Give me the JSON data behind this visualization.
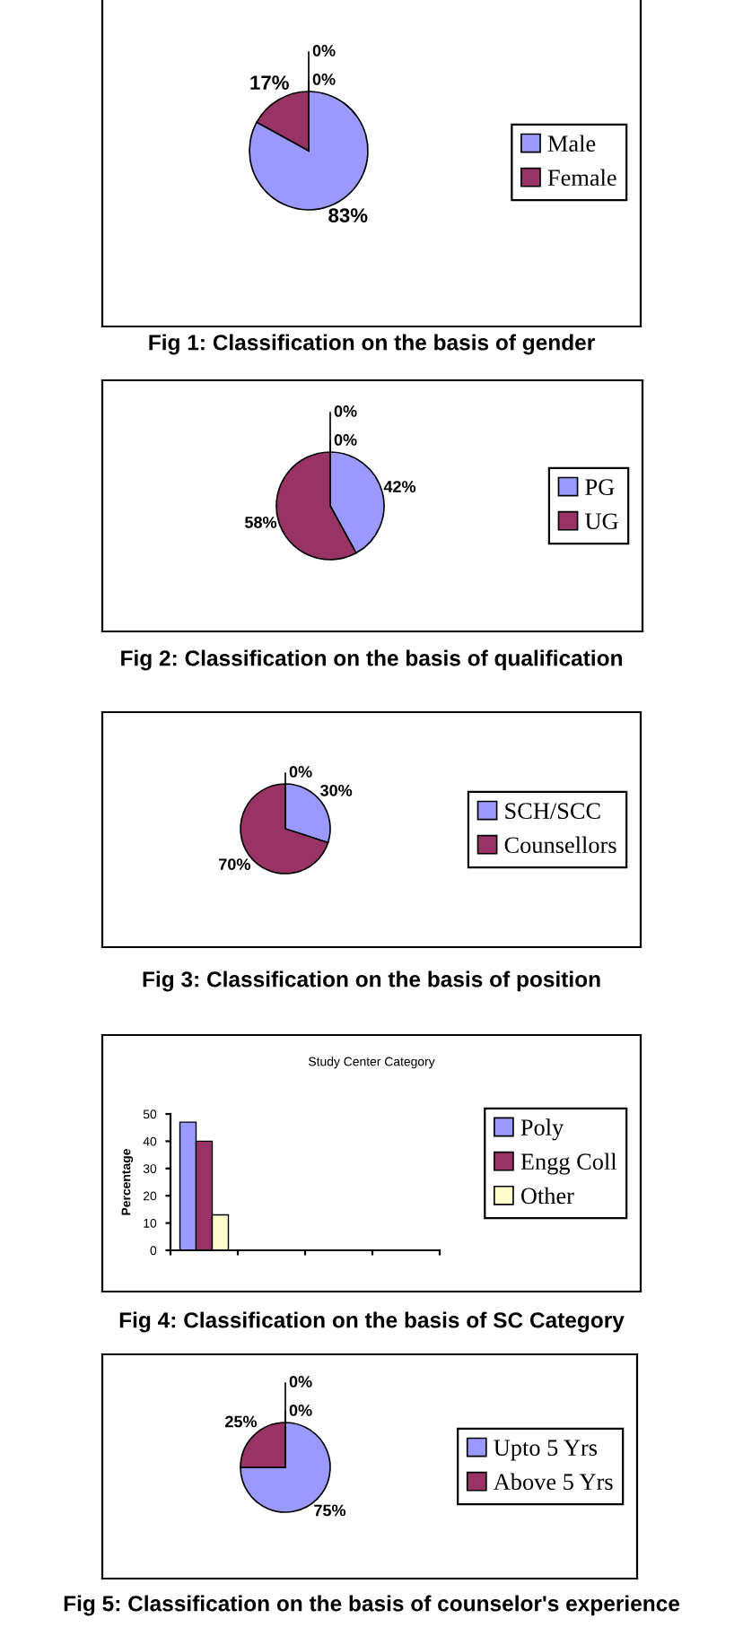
{
  "chart_data": [
    {
      "type": "pie",
      "categories": [
        "Male",
        "Female",
        null,
        null
      ],
      "values": [
        83,
        17,
        0,
        0
      ],
      "colors": [
        "#9999ff",
        "#993366",
        "#ffffcc",
        "#ccffff"
      ],
      "value_labels": [
        "83%",
        "17%",
        "0%",
        "0%"
      ],
      "legend": "right",
      "annotations": [
        "Fig 1: Classification on the basis of gender"
      ]
    },
    {
      "type": "pie",
      "categories": [
        "PG",
        "UG",
        null,
        null
      ],
      "values": [
        42,
        58,
        0,
        0
      ],
      "colors": [
        "#9999ff",
        "#993366",
        "#ffffcc",
        "#ccffff"
      ],
      "value_labels": [
        "42%",
        "58%",
        "0%",
        "0%"
      ],
      "legend": "right",
      "annotations": [
        "Fig 2: Classification on the basis of qualification"
      ]
    },
    {
      "type": "pie",
      "categories": [
        "SCH/SCC",
        "Counsellors",
        null
      ],
      "values": [
        30,
        70,
        0
      ],
      "colors": [
        "#9999ff",
        "#993366",
        "#ffffcc"
      ],
      "value_labels": [
        "30%",
        "70%",
        "0%"
      ],
      "legend": "right",
      "annotations": [
        "Fig 3: Classification on the basis of position"
      ]
    },
    {
      "type": "bar",
      "title": "Study Center Category",
      "ylabel": "Percentage",
      "categories": [
        null,
        null,
        null,
        null
      ],
      "series": [
        {
          "name": "Poly",
          "color": "#9999ff",
          "values": [
            47,
            null,
            null,
            null
          ]
        },
        {
          "name": "Engg Coll",
          "color": "#993366",
          "values": [
            40,
            null,
            null,
            null
          ]
        },
        {
          "name": "Other",
          "color": "#ffffcc",
          "values": [
            13,
            null,
            null,
            null
          ]
        }
      ],
      "ylim": [
        0,
        50
      ],
      "yticks": [
        0,
        10,
        20,
        30,
        40,
        50
      ],
      "legend": "right",
      "annotations": [
        "Fig 4: Classification on the basis of SC Category"
      ]
    },
    {
      "type": "pie",
      "categories": [
        "Upto 5 Yrs",
        "Above 5 Yrs",
        null,
        null
      ],
      "values": [
        75,
        25,
        0,
        0
      ],
      "colors": [
        "#9999ff",
        "#993366",
        "#ffffcc",
        "#ccffff"
      ],
      "value_labels": [
        "75%",
        "25%",
        "0%",
        "0%"
      ],
      "legend": "right",
      "annotations": [
        "Fig 5: Classification on the basis of counselor's experience"
      ]
    }
  ]
}
